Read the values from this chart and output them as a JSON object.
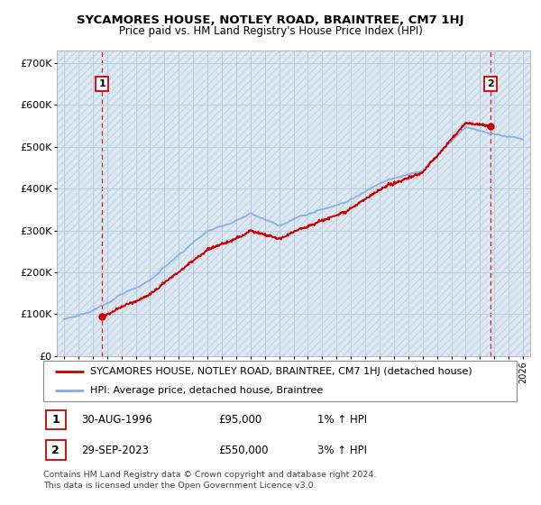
{
  "title": "SYCAMORES HOUSE, NOTLEY ROAD, BRAINTREE, CM7 1HJ",
  "subtitle": "Price paid vs. HM Land Registry's House Price Index (HPI)",
  "yticks": [
    0,
    100000,
    200000,
    300000,
    400000,
    500000,
    600000,
    700000
  ],
  "ytick_labels": [
    "£0",
    "£100K",
    "£200K",
    "£300K",
    "£400K",
    "£500K",
    "£600K",
    "£700K"
  ],
  "xlim_start": 1993.5,
  "xlim_end": 2026.5,
  "ylim": [
    0,
    730000
  ],
  "transaction1": {
    "date_num": 1996.66,
    "price": 95000,
    "label": "1"
  },
  "transaction2": {
    "date_num": 2023.75,
    "price": 550000,
    "label": "2"
  },
  "legend_line1": "SYCAMORES HOUSE, NOTLEY ROAD, BRAINTREE, CM7 1HJ (detached house)",
  "legend_line2": "HPI: Average price, detached house, Braintree",
  "table_row1": [
    "1",
    "30-AUG-1996",
    "£95,000",
    "1% ↑ HPI"
  ],
  "table_row2": [
    "2",
    "29-SEP-2023",
    "£550,000",
    "3% ↑ HPI"
  ],
  "footer": "Contains HM Land Registry data © Crown copyright and database right 2024.\nThis data is licensed under the Open Government Licence v3.0.",
  "house_color": "#cc0000",
  "hpi_color": "#88aadd",
  "bg_color": "#dde8f0",
  "grid_color": "#b8cce0",
  "vline_color": "#cc0000"
}
